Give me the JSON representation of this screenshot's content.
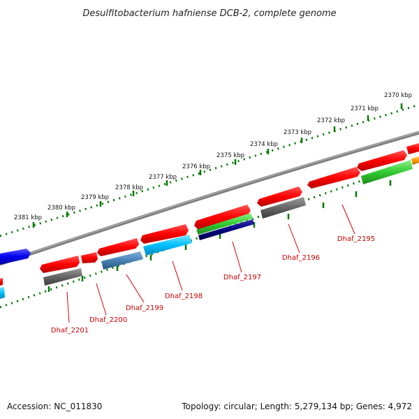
{
  "title": "Desulfitobacterium hafniense DCB-2, complete genome",
  "accession": "Accession: NC_011830",
  "summary": "Topology: circular; Length: 5,279,134 bp; Genes: 4,972",
  "kbp_labels": [
    "2381 kbp",
    "2380 kbp",
    "2379 kbp",
    "2378 kbp",
    "2377 kbp",
    "2376 kbp",
    "2375 kbp",
    "2374 kbp",
    "2373 kbp",
    "2372 kbp",
    "2371 kbp",
    "2370 kbp"
  ],
  "gene_labels": [
    "Dhaf_2201",
    "Dhaf_2200",
    "Dhaf_2199",
    "Dhaf_2198",
    "Dhaf_2197",
    "Dhaf_2196",
    "Dhaf_2195"
  ],
  "colors": {
    "forward_red": "#ff0000",
    "backbone_gray": "#808080",
    "tick_green": "#007700",
    "gene_label_red": "#cc0000",
    "steel_blue": "#4682b4",
    "sky_blue": "#00bfff",
    "navy": "#000080",
    "green": "#33cc33",
    "orange": "#ff9900",
    "dark_gray": "#555555",
    "blue": "#0000ee"
  }
}
